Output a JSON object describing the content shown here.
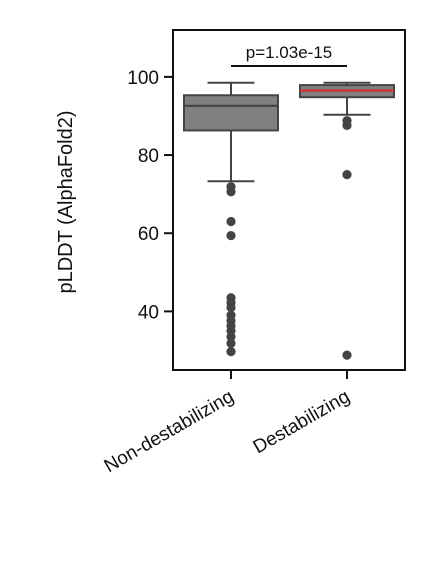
{
  "chart_data": {
    "type": "box",
    "title": "",
    "xlabel": "",
    "ylabel": "pLDDT (AlphaFold2)",
    "ylim": [
      25,
      112
    ],
    "yticks": [
      40,
      60,
      80,
      100
    ],
    "grid": false,
    "categories": [
      "Non-destabilizing",
      "Destabilizing"
    ],
    "boxes": [
      {
        "category": "Non-destabilizing",
        "color": "#808080",
        "median_color": "#444444",
        "whisker_low": 73.3,
        "q1": 86.3,
        "median": 92.6,
        "q3": 95.3,
        "whisker_high": 98.5,
        "outliers": [
          71.9,
          70.6,
          63.0,
          59.4,
          43.5,
          42.2,
          41.0,
          39.0,
          37.6,
          36.3,
          35.0,
          33.5,
          31.8,
          29.7
        ]
      },
      {
        "category": "Destabilizing",
        "color": "#808080",
        "median_color": "#d42a2a",
        "whisker_low": 90.3,
        "q1": 94.8,
        "median": 96.5,
        "q3": 97.9,
        "whisker_high": 98.5,
        "outliers": [
          88.8,
          87.6,
          75.0,
          28.8
        ]
      }
    ],
    "annotation": {
      "text": "p=1.03e-15",
      "y": 102.8
    }
  }
}
